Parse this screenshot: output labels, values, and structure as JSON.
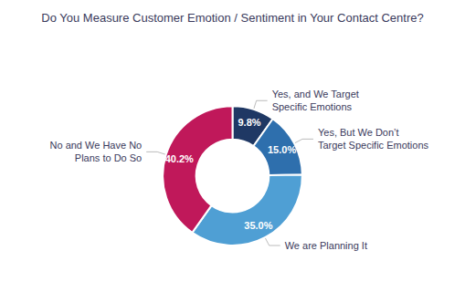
{
  "chart_data": {
    "type": "pie",
    "title": "Do You Measure Customer Emotion / Sentiment in Your Contact Centre?",
    "categories": [
      "Yes, and We Target\nSpecific Emotions",
      "Yes, But We Don’t\nTarget Specific Emotions",
      "We are Planning It",
      "No and We Have No\nPlans to Do So"
    ],
    "values": [
      9.8,
      15.0,
      35.0,
      40.2
    ],
    "value_labels": [
      "9.8%",
      "15.0%",
      "35.0%",
      "40.2%"
    ],
    "colors": [
      "#1f3864",
      "#2e6fad",
      "#4f9fd4",
      "#c0185a"
    ],
    "data_labels": true
  }
}
